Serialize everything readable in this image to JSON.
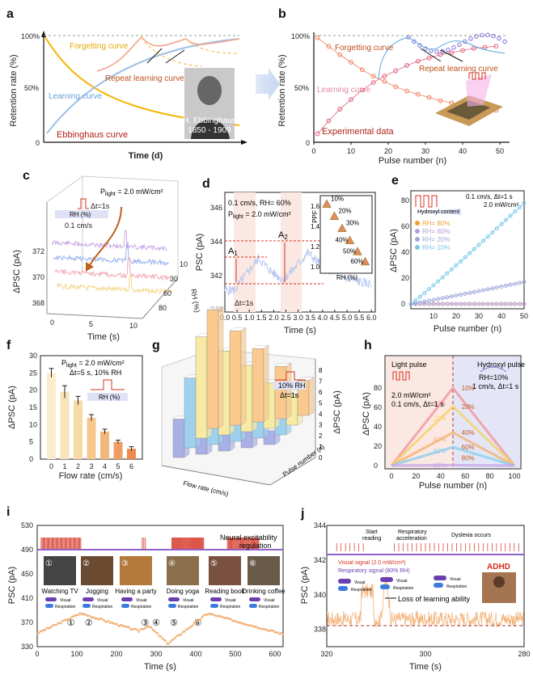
{
  "colors": {
    "orange": "#f0a020",
    "blue": "#9cc1e8",
    "red": "#d43020",
    "pink": "#f2a58c",
    "gold": "#e8b400",
    "bg_pink": "#fbe8e2",
    "bg_lav": "#e4e6f7"
  },
  "panel_labels": {
    "a": "a",
    "b": "b",
    "c": "c",
    "d": "d",
    "e": "e",
    "f": "f",
    "g": "g",
    "h": "h",
    "i": "i",
    "j": "j"
  },
  "chart_data": [
    {
      "panel": "a",
      "type": "line",
      "xlabel": "Time (d)",
      "ylabel": "Retention rate (%)",
      "y_ticks": [
        "100%",
        "50%",
        "0"
      ],
      "annotations": {
        "forgetting": "Forgetting curve",
        "repeat": "Repeat learning curve",
        "learning": "Learning curve",
        "ebbinghaus": "Ebbinghaus curve",
        "portrait_line1": "H. Ebbinghaus",
        "portrait_line2": "1850 - 1909"
      }
    },
    {
      "panel": "b",
      "type": "scatter",
      "xlabel": "Pulse number (n)",
      "ylabel": "Retention rate (%)",
      "x_ticks": [
        0,
        10,
        20,
        30,
        40,
        50
      ],
      "y_ticks": [
        "100%",
        "50%",
        "0"
      ],
      "annotations": {
        "forgetting": "Forgetting curve",
        "repeat": "Repeat learning curve",
        "learning": "Learning curve",
        "experimental": "Experimental data"
      },
      "series": [
        {
          "name": "learning",
          "x": [
            1,
            4,
            7,
            10,
            13,
            16,
            19,
            22,
            25,
            28,
            31,
            34,
            37,
            40,
            43,
            46,
            49
          ],
          "y": [
            8,
            20,
            31,
            40,
            49,
            56,
            62,
            67,
            72,
            76,
            79,
            82,
            84,
            86,
            88,
            89,
            90
          ]
        },
        {
          "name": "forgetting",
          "x": [
            1,
            4,
            7,
            10,
            13,
            16,
            19,
            22,
            25,
            28,
            31,
            34,
            37,
            40,
            43,
            46,
            49
          ],
          "y": [
            98,
            90,
            82,
            75,
            68,
            62,
            57,
            52,
            48,
            45,
            42,
            39,
            37,
            35,
            33,
            31,
            30
          ]
        }
      ]
    },
    {
      "panel": "c",
      "type": "line",
      "xlabel": "Time (s)",
      "ylabel": "ΔPSC (pA)",
      "zlabel": "RH (%)",
      "x_ticks": [
        0,
        5,
        10
      ],
      "y_ticks": [
        368,
        370,
        372
      ],
      "rh_ticks": [
        10,
        30,
        60,
        80
      ],
      "annotations": {
        "plight_pre": "P",
        "plight_sub": "light",
        "plight_post": " = 2.0 mW/cm²",
        "dt": "Δt=1s",
        "rh_box": "RH (%)",
        "flow": "0.1 cm/s"
      }
    },
    {
      "panel": "d",
      "type": "line",
      "xlabel": "Time (s)",
      "ylabel": "PSC (pA)",
      "x_ticks": [
        "0.0",
        "0.5",
        "1.0",
        "1.5",
        "2.0",
        "2.5",
        "3.0",
        "3.5",
        "4.0",
        "4.5",
        "5.0",
        "5.5",
        "6.0"
      ],
      "y_ticks": [
        340,
        342,
        344,
        346
      ],
      "annotations": {
        "cond1": "0.1 cm/s, RH= 60%",
        "plight_pre": "P",
        "plight_sub": "light",
        "plight_post": " = 2.0 mW/cm²",
        "a1": "A",
        "a1_sub": "1",
        "a2": "A",
        "a2_sub": "2",
        "dt": "Δt=1s"
      },
      "inset": {
        "xlabel": "RH (%)",
        "ylabel": "PPF",
        "y_ticks": [
          "1.0",
          "1.2",
          "1.4",
          "1.6"
        ],
        "labels": [
          "10%",
          "20%",
          "30%",
          "40%",
          "50%",
          "60%"
        ],
        "ppf": [
          1.62,
          1.5,
          1.38,
          1.26,
          1.15,
          1.05
        ]
      }
    },
    {
      "panel": "e",
      "type": "scatter",
      "xlabel": "Pulse number (n)",
      "ylabel": "ΔPSC (pA)",
      "x_ticks": [
        10,
        20,
        30,
        40,
        50
      ],
      "y_ticks": [
        0,
        20,
        40,
        60,
        80
      ],
      "annotations": {
        "cond1": "0.1 cm/s, Δt=1 s",
        "cond2": "2.0 mW/cm²",
        "hydroxyl": "Hydroxyl content"
      },
      "series": [
        {
          "name": "RH= 80%",
          "final": 0,
          "color": "#f2a030"
        },
        {
          "name": "RH= 60%",
          "final": 0,
          "color": "#b39ddb"
        },
        {
          "name": "RH= 20%",
          "final": 17,
          "color": "#9fa8da"
        },
        {
          "name": "RH= 10%",
          "final": 78,
          "color": "#78c8e8"
        }
      ]
    },
    {
      "panel": "f",
      "type": "bar",
      "xlabel": "Flow rate (cm/s)",
      "ylabel": "ΔPSC (pA)",
      "categories": [
        0,
        1,
        2,
        3,
        4,
        5,
        6
      ],
      "values": [
        25,
        19.5,
        17,
        12,
        8,
        5,
        3
      ],
      "errors": [
        1.3,
        1.8,
        1.2,
        0.9,
        0.7,
        0.5,
        0.6
      ],
      "ylim": [
        0,
        30
      ],
      "y_ticks": [
        0,
        5,
        10,
        15,
        20,
        25,
        30
      ],
      "annotations": {
        "plight_pre": "P",
        "plight_sub": "light",
        "plight_post": " = 2.0 mW/cm²",
        "cond": "Δt=5 s, 10% RH",
        "rh_box": "RH (%)"
      }
    },
    {
      "panel": "g",
      "type": "bar",
      "zlabel": "ΔPSC (pA)",
      "z_ticks": [
        0,
        1,
        2,
        3,
        4,
        5,
        6,
        7,
        8
      ],
      "xlabel": "Flow rate (cm/s)",
      "ylabel": "Pulse number (n)",
      "annotations": {
        "cond1": "10% RH",
        "cond2": "Δt=1s"
      },
      "rows": [
        {
          "color": "#a9b0e6",
          "values": [
            2.2,
            1.8,
            1.5,
            1.2,
            0.8
          ]
        },
        {
          "color": "#9fd1ee",
          "values": [
            4.0,
            3.4,
            2.6,
            2.0,
            1.4
          ]
        },
        {
          "color": "#f6eaa4",
          "values": [
            5.8,
            4.8,
            3.8,
            2.6,
            1.8
          ]
        },
        {
          "color": "#f9c98e",
          "values": [
            6.8,
            5.4,
            4.2,
            3.0,
            2.0
          ]
        }
      ]
    },
    {
      "panel": "h",
      "type": "line",
      "xlabel": "Pulse number (n)",
      "ylabel": "ΔPSC (pA)",
      "x_ticks": [
        0,
        20,
        40,
        60,
        80,
        100
      ],
      "y_ticks": [
        0,
        20,
        40,
        60,
        80
      ],
      "annotations": {
        "light_pulse": "Light pulse",
        "hydroxyl_pulse": "Hydroxyl pulse",
        "cond_l1": "2.0 mW/cm²",
        "cond_l2": "0.1 cm/s, Δt=1 s",
        "cond_r1": "RH=10%",
        "cond_r2": "1 cm/s, Δt=1 s"
      },
      "series": [
        {
          "name": "10%",
          "peak": 80,
          "color": "#f19aa0"
        },
        {
          "name": "60%",
          "peak": 61,
          "color": "#f4d36e"
        },
        {
          "name": "40%",
          "peak": 34,
          "color": "#f4b47a"
        },
        {
          "name": "20%",
          "peak": 19,
          "color": "#8fd0ec"
        },
        {
          "name": "80%",
          "peak": 0.5,
          "color": "#c9a8e6"
        }
      ],
      "left_labels": [
        "10%",
        "20%",
        "40%",
        "60%",
        "80%"
      ],
      "right_labels": [
        "80%",
        "60%",
        "40%",
        "20%",
        "10%"
      ]
    },
    {
      "panel": "i",
      "type": "line",
      "xlabel": "Time (s)",
      "ylabel": "PSC (pA)",
      "x_ticks": [
        0,
        100,
        200,
        300,
        400,
        500,
        600
      ],
      "y_ticks": [
        330,
        370,
        410,
        450,
        490,
        530
      ],
      "annotations": {
        "neural": "Neural excitability",
        "regulation": "regulation",
        "tag_visual": "Visual",
        "tag_resp": "Respiration"
      },
      "activities": [
        {
          "n": "①",
          "label": "Watching TV"
        },
        {
          "n": "②",
          "label": "Jogging"
        },
        {
          "n": "③",
          "label": "Having a party"
        },
        {
          "n": "④",
          "label": "Doing yoga"
        },
        {
          "n": "⑤",
          "label": "Reading book"
        },
        {
          "n": "⑥",
          "label": "Drinking coffee"
        }
      ],
      "markers": [
        "①",
        "②",
        "③",
        "④",
        "⑤",
        "⑥"
      ]
    },
    {
      "panel": "j",
      "type": "line",
      "xlabel": "Time (s)",
      "ylabel": "PSC (pA)",
      "x_ticks": [
        320,
        300,
        280
      ],
      "y_ticks": [
        338,
        340,
        342,
        344
      ],
      "annotations": {
        "start": "Start",
        "reading": "reading",
        "resp": "Respiratory",
        "accel": "acceleration",
        "dyslexia": "Dyslexia occurs",
        "legend1": "Visual signal (2.0 mW/cm²)",
        "legend2": "Respiratory signal (80% RH)",
        "loss": "Loss of learning ability",
        "adhd": "ADHD",
        "tag_visual": "Visual",
        "tag_resp": "Respiration"
      }
    }
  ]
}
